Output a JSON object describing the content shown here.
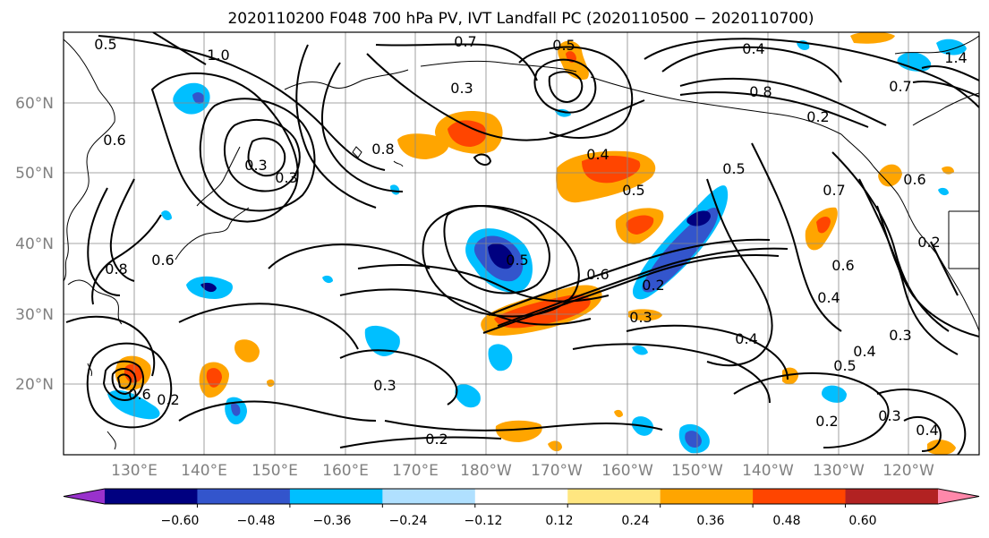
{
  "title": "2020110200 F048 700 hPa PV, IVT Landfall PC (2020110500 - 2020110700)",
  "lat_labels": [
    "60°N",
    "50°N",
    "40°N",
    "30°N",
    "20°N"
  ],
  "lon_labels": [
    "130°E",
    "140°E",
    "150°E",
    "160°E",
    "170°E",
    "180°W",
    "170°W",
    "160°W",
    "150°W",
    "140°W",
    "130°W",
    "120°W"
  ],
  "colorbar": {
    "colors": [
      "#9932cc",
      "#000080",
      "#3355cc",
      "#00bfff",
      "#b0e0ff",
      "#ffffff",
      "#ffe680",
      "#ffa500",
      "#ff4500",
      "#b22222",
      "#ff88aa"
    ],
    "tick_labels": [
      "-0.60",
      "-0.48",
      "-0.36",
      "-0.24",
      "-0.12",
      "0.12",
      "0.24",
      "0.36",
      "0.48",
      "0.60"
    ]
  },
  "contour_labels": [
    "0.5",
    "1.0",
    "0.7",
    "0.5",
    "0.4",
    "1.4",
    "0.7",
    "0.8",
    "0.3",
    "0.6",
    "0.3",
    "0.8",
    "0.4",
    "0.5",
    "0.5",
    "0.7",
    "0.6",
    "0.6",
    "0.2",
    "0.5",
    "0.6",
    "0.4",
    "0.2",
    "0.3",
    "0.2",
    "0.3",
    "0.4",
    "0.5",
    "0.4",
    "0.3",
    "0.2",
    "0.3",
    "0.4",
    "0.2",
    "0.3",
    "0.6",
    "0.6",
    "0.2",
    "0.8"
  ]
}
